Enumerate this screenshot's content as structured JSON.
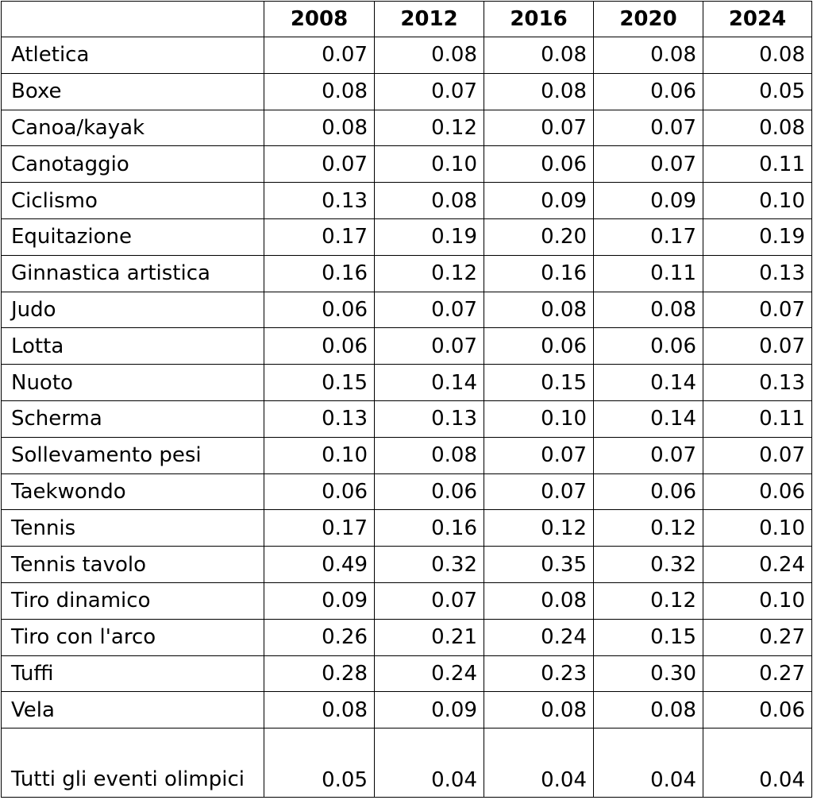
{
  "table": {
    "header": [
      "",
      "2008",
      "2012",
      "2016",
      "2020",
      "2024"
    ],
    "rows": [
      {
        "label": "Atletica",
        "values": [
          "0.07",
          "0.08",
          "0.08",
          "0.08",
          "0.08"
        ]
      },
      {
        "label": "Boxe",
        "values": [
          "0.08",
          "0.07",
          "0.08",
          "0.06",
          "0.05"
        ]
      },
      {
        "label": "Canoa/kayak",
        "values": [
          "0.08",
          "0.12",
          "0.07",
          "0.07",
          "0.08"
        ]
      },
      {
        "label": "Canotaggio",
        "values": [
          "0.07",
          "0.10",
          "0.06",
          "0.07",
          "0.11"
        ]
      },
      {
        "label": "Ciclismo",
        "values": [
          "0.13",
          "0.08",
          "0.09",
          "0.09",
          "0.10"
        ]
      },
      {
        "label": "Equitazione",
        "values": [
          "0.17",
          "0.19",
          "0.20",
          "0.17",
          "0.19"
        ]
      },
      {
        "label": "Ginnastica artistica",
        "values": [
          "0.16",
          "0.12",
          "0.16",
          "0.11",
          "0.13"
        ]
      },
      {
        "label": "Judo",
        "values": [
          "0.06",
          "0.07",
          "0.08",
          "0.08",
          "0.07"
        ]
      },
      {
        "label": "Lotta",
        "values": [
          "0.06",
          "0.07",
          "0.06",
          "0.06",
          "0.07"
        ]
      },
      {
        "label": "Nuoto",
        "values": [
          "0.15",
          "0.14",
          "0.15",
          "0.14",
          "0.13"
        ]
      },
      {
        "label": "Scherma",
        "values": [
          "0.13",
          "0.13",
          "0.10",
          "0.14",
          "0.11"
        ]
      },
      {
        "label": "Sollevamento pesi",
        "values": [
          "0.10",
          "0.08",
          "0.07",
          "0.07",
          "0.07"
        ]
      },
      {
        "label": "Taekwondo",
        "values": [
          "0.06",
          "0.06",
          "0.07",
          "0.06",
          "0.06"
        ]
      },
      {
        "label": "Tennis",
        "values": [
          "0.17",
          "0.16",
          "0.12",
          "0.12",
          "0.10"
        ]
      },
      {
        "label": "Tennis tavolo",
        "values": [
          "0.49",
          "0.32",
          "0.35",
          "0.32",
          "0.24"
        ]
      },
      {
        "label": "Tiro dinamico",
        "values": [
          "0.09",
          "0.07",
          "0.08",
          "0.12",
          "0.10"
        ]
      },
      {
        "label": "Tiro con l'arco",
        "values": [
          "0.26",
          "0.21",
          "0.24",
          "0.15",
          "0.27"
        ]
      },
      {
        "label": "Tuffi",
        "values": [
          "0.28",
          "0.24",
          "0.23",
          "0.30",
          "0.27"
        ]
      },
      {
        "label": "Vela",
        "values": [
          "0.08",
          "0.09",
          "0.08",
          "0.08",
          "0.06"
        ]
      },
      {
        "label": "Tutti gli eventi olimpici",
        "values": [
          "0.05",
          "0.04",
          "0.04",
          "0.04",
          "0.04"
        ]
      }
    ]
  }
}
